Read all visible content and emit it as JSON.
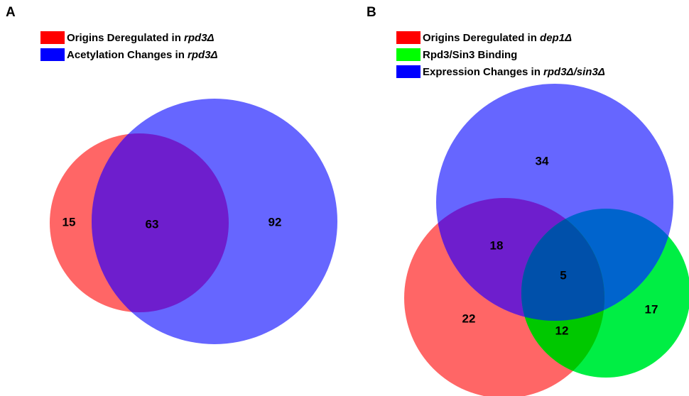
{
  "panel_a": {
    "label": "A",
    "legend": [
      {
        "text": "Origins Deregulated in ",
        "italic": "rpd3Δ",
        "color": "#ff0000"
      },
      {
        "text": "Acetylation Changes in ",
        "italic": "rpd3Δ",
        "color": "#0000ff"
      }
    ],
    "counts": {
      "red_only": "15",
      "overlap": "63",
      "blue_only": "92"
    }
  },
  "panel_b": {
    "label": "B",
    "legend": [
      {
        "text": "Origins Deregulated in ",
        "italic": "dep1Δ",
        "color": "#ff0000"
      },
      {
        "text": "Rpd3/Sin3 Binding",
        "italic": "",
        "color": "#00ff00"
      },
      {
        "text": "Expression Changes in ",
        "italic": "rpd3Δ/sin3Δ",
        "color": "#0000ff"
      }
    ],
    "counts": {
      "blue_only": "34",
      "red_blue": "18",
      "center": "5",
      "red_only": "22",
      "red_green": "12",
      "green_only": "17"
    }
  },
  "colors": {
    "red_fill": "#ff6666",
    "blue_fill": "#6666ff",
    "green_fill": "#00ee44",
    "red_blue": "#6e1ecd",
    "blue_green": "#0064cd",
    "red_green": "#00c800",
    "center": "#0050aa"
  }
}
